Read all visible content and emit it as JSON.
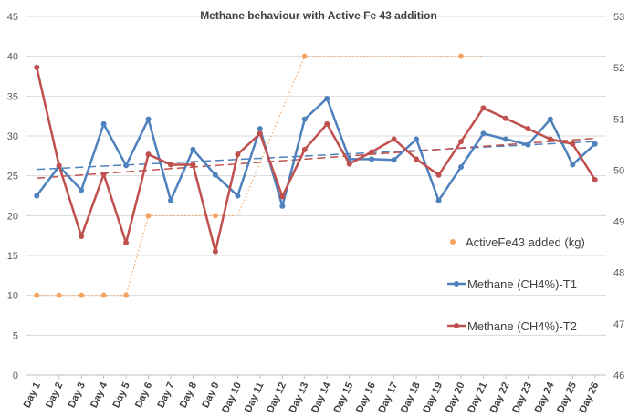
{
  "chart_data": {
    "type": "line",
    "title": "Methane behaviour with Active Fe 43 addition",
    "categories": [
      "Day 1",
      "Day 2",
      "Day 3",
      "Day 4",
      "Day 5",
      "Day 6",
      "Day 7",
      "Day 8",
      "Day 9",
      "Day 10",
      "Day 11",
      "Day 12",
      "Day 13",
      "Day 14",
      "Day 15",
      "Day 16",
      "Day 17",
      "Day 18",
      "Day 19",
      "Day 20",
      "Day 21",
      "Day 22",
      "Day 23",
      "Day 24",
      "Day 25",
      "Day 26"
    ],
    "y_left": {
      "min": 0,
      "max": 45,
      "step": 5,
      "ticks": [
        "0",
        "5",
        "10",
        "15",
        "20",
        "25",
        "30",
        "35",
        "40",
        "45"
      ]
    },
    "y_right": {
      "min": 46,
      "max": 53,
      "step": 1,
      "ticks": [
        "46",
        "47",
        "48",
        "49",
        "50",
        "51",
        "52",
        "53"
      ]
    },
    "series": [
      {
        "name": "ActiveFe43 added (kg)",
        "axis": "left",
        "color": "#F4A460",
        "marker_only": true,
        "connector": "dotted",
        "points": [
          {
            "x": 0,
            "y": 10
          },
          {
            "x": 1,
            "y": 10
          },
          {
            "x": 2,
            "y": 10
          },
          {
            "x": 3,
            "y": 10
          },
          {
            "x": 4,
            "y": 10
          },
          {
            "x": 5,
            "y": 20
          },
          {
            "x": 8,
            "y": 20
          },
          {
            "x": 12,
            "y": 40
          },
          {
            "x": 19,
            "y": 40
          }
        ],
        "connector_path": [
          {
            "x": 0,
            "y": 10
          },
          {
            "x": 4,
            "y": 10
          },
          {
            "x": 5,
            "y": 20
          },
          {
            "x": 9,
            "y": 20
          },
          {
            "x": 12,
            "y": 40
          },
          {
            "x": 20,
            "y": 40
          }
        ]
      },
      {
        "name": "Methane (CH4%)-T1",
        "axis": "left",
        "color": "#4F81BD",
        "values": [
          22.5,
          26.2,
          23.2,
          31.5,
          26.3,
          32.1,
          21.9,
          28.3,
          25.1,
          22.5,
          30.9,
          21.2,
          32.1,
          34.7,
          27.1,
          27.1,
          27.0,
          29.6,
          21.9,
          26.1,
          30.3,
          29.6,
          28.9,
          32.1,
          26.4,
          29.0
        ]
      },
      {
        "name": "Methane (CH4%)-T2",
        "axis": "left",
        "color": "#C0504D",
        "values": [
          38.6,
          26.3,
          17.4,
          25.2,
          16.6,
          27.7,
          26.4,
          26.4,
          15.5,
          27.7,
          30.3,
          22.4,
          28.3,
          31.5,
          26.5,
          28.0,
          29.6,
          27.1,
          25.1,
          29.3,
          33.5,
          32.2,
          30.9,
          29.6,
          29.0,
          24.5
        ]
      }
    ],
    "trendlines": [
      {
        "series": "Methane (CH4%)-T1",
        "color": "#4F81BD",
        "start": 25.8,
        "end": 29.3
      },
      {
        "series": "Methane (CH4%)-T2",
        "color": "#C0504D",
        "start": 24.7,
        "end": 29.7
      }
    ],
    "legend": [
      {
        "label": "ActiveFe43 added (kg)",
        "color": "#F4A460",
        "style": "marker"
      },
      {
        "label": "Methane (CH4%)-T1",
        "color": "#4F81BD",
        "style": "line-marker"
      },
      {
        "label": "Methane (CH4%)-T2",
        "color": "#C0504D",
        "style": "line-marker"
      }
    ],
    "grid": true
  }
}
